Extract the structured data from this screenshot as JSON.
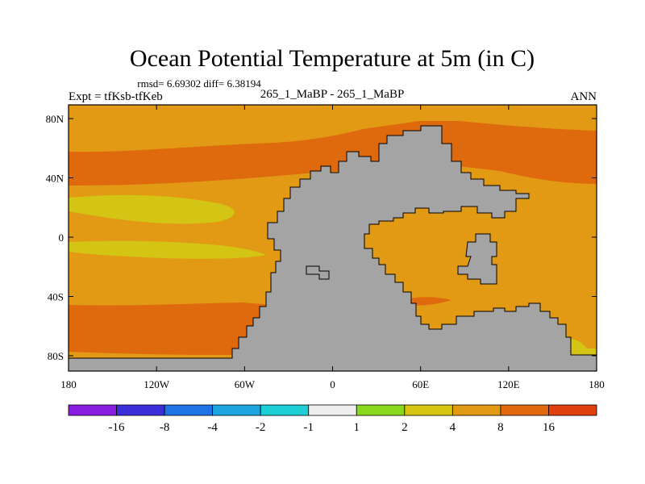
{
  "title": "Ocean Potential Temperature at 5m (in C)",
  "stats": "rmsd= 6.69302 diff= 6.38194",
  "expt": "Expt = tfKsb-tfKeb",
  "case": "265_1_MaBP - 265_1_MaBP",
  "season": "ANN",
  "lat_ticks": [
    "80N",
    "40N",
    "0",
    "40S",
    "80S"
  ],
  "lat_values": [
    80,
    40,
    0,
    -40,
    -80
  ],
  "lon_ticks": [
    "180",
    "120W",
    "60W",
    "0",
    "60E",
    "120E",
    "180"
  ],
  "lon_values": [
    -180,
    -120,
    -60,
    0,
    60,
    120,
    180
  ],
  "colorbar": {
    "labels": [
      "-16",
      "-8",
      "-4",
      "-2",
      "-1",
      "1",
      "2",
      "4",
      "8",
      "16"
    ],
    "colors": [
      "#8a1ee0",
      "#3a2fd8",
      "#1e74e6",
      "#1aa4e0",
      "#1ccfd4",
      "#eeeeee",
      "#8ad81e",
      "#d6c612",
      "#e29a14",
      "#e0680e",
      "#e0400c"
    ]
  },
  "colors": {
    "land": "#a4a4a4",
    "band_8_16": "#e29a14",
    "band_16_plus": "#df6a0e",
    "band_4_8": "#d4c414",
    "band_2_4": "#8ad81e"
  }
}
